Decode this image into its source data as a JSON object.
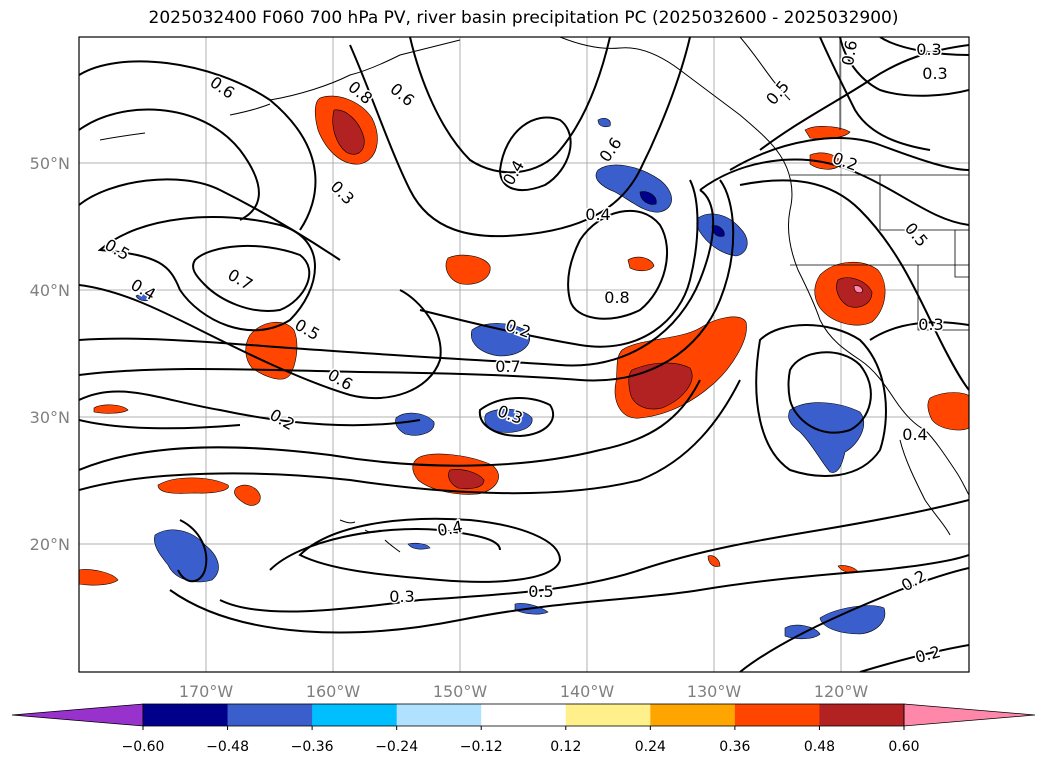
{
  "title": "2025032400 F060 700 hPa PV, river basin precipitation PC (2025032600 - 2025032900)",
  "map": {
    "lon_ticks": [
      "170°W",
      "160°W",
      "150°W",
      "140°W",
      "130°W",
      "120°W"
    ],
    "lat_ticks": [
      "50°N",
      "40°N",
      "30°N",
      "20°N"
    ],
    "contour_labels": [
      "0.6",
      "0.8",
      "0.6",
      "0.4",
      "0.3",
      "0.6",
      "0.5",
      "0.4",
      "0.7",
      "0.5",
      "0.6",
      "0.2",
      "0.3",
      "0.6",
      "0.5",
      "0.7",
      "0.4",
      "0.8",
      "0.3",
      "0.4",
      "0.5",
      "0.2",
      "0.4",
      "0.2",
      "0.3",
      "0.3",
      "0.2",
      "0.2",
      "0.5",
      "0.3"
    ]
  },
  "colorbar": {
    "ticks": [
      "−0.60",
      "−0.48",
      "−0.36",
      "−0.24",
      "−0.12",
      "0.12",
      "0.24",
      "0.36",
      "0.48",
      "0.60"
    ],
    "colors": [
      "#9932cc",
      "#00008b",
      "#3a5fcd",
      "#00bfff",
      "#b0e2ff",
      "#ffffff",
      "#fff08c",
      "#ffa500",
      "#ff4500",
      "#b22222",
      "#ff88aa"
    ]
  }
}
